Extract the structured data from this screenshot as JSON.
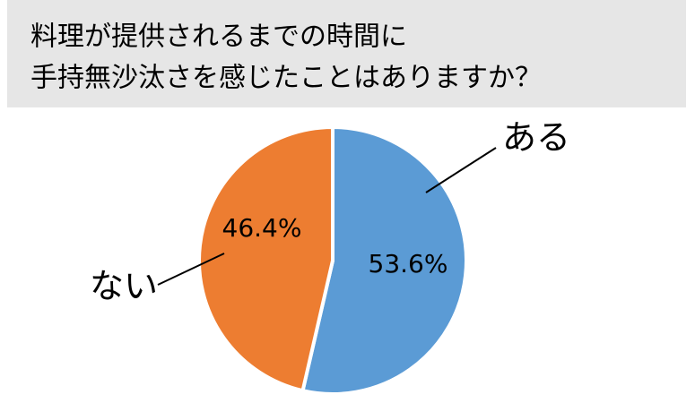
{
  "chart_data": {
    "type": "pie",
    "title": [
      "料理が提供されるまでの時間に",
      "手持無沙汰さを感じたことはありますか？"
    ],
    "categories": [
      "ある",
      "ない"
    ],
    "values": [
      53.6,
      46.4
    ],
    "value_labels": [
      "53.6%",
      "46.4%"
    ],
    "colors": [
      "#5b9bd5",
      "#ed7d31"
    ]
  }
}
